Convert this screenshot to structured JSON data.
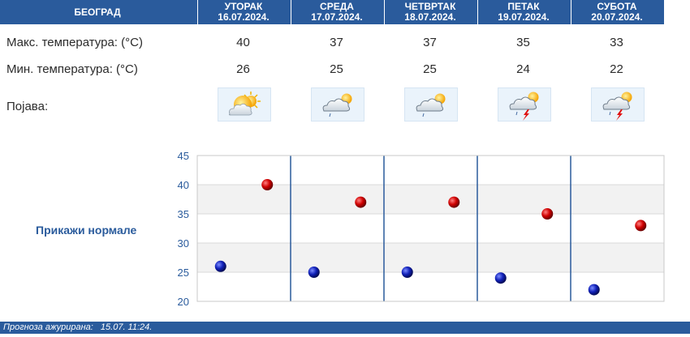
{
  "header": {
    "city": "БЕОГРАД",
    "days": [
      {
        "name": "УТОРАК",
        "date": "16.07.2024."
      },
      {
        "name": "СРЕДА",
        "date": "17.07.2024."
      },
      {
        "name": "ЧЕТВРТАК",
        "date": "18.07.2024."
      },
      {
        "name": "ПЕТАК",
        "date": "19.07.2024."
      },
      {
        "name": "СУБОТА",
        "date": "20.07.2024."
      }
    ]
  },
  "rows": {
    "max_label": "Макс. температура: (°C)",
    "min_label": "Мин. температура: (°C)",
    "phen_label": "Појава:",
    "max_values": [
      "40",
      "37",
      "37",
      "35",
      "33"
    ],
    "min_values": [
      "26",
      "25",
      "25",
      "24",
      "22"
    ],
    "icons": [
      "partly-cloudy-sun-icon",
      "cloud-sun-drizzle-icon",
      "cloud-sun-drizzle-icon",
      "cloud-sun-thunder-icon",
      "cloud-sun-thunder-icon"
    ]
  },
  "normals_link": "Прикажи нормале",
  "chart_data": {
    "type": "scatter",
    "categories": [
      "УТОРАК",
      "СРЕДА",
      "ЧЕТВРТАК",
      "ПЕТАК",
      "СУБОТА"
    ],
    "series": [
      {
        "values": [
          40,
          37,
          37,
          35,
          33
        ],
        "color": "#cc0000"
      },
      {
        "values": [
          26,
          25,
          25,
          24,
          22
        ],
        "color": "#0a1ea0"
      }
    ],
    "yticks": [
      "45",
      "40",
      "35",
      "30",
      "25",
      "20"
    ],
    "ylim": [
      20,
      45
    ],
    "grid": true
  },
  "footer": {
    "label": "Прогноза ажурирана:",
    "value": "15.07. 11:24."
  },
  "colors": {
    "header_bg": "#2a5b9c",
    "band_bg": "#f2f2f2",
    "separator": "#2a5b9c",
    "axis_text": "#2a5b9c"
  }
}
